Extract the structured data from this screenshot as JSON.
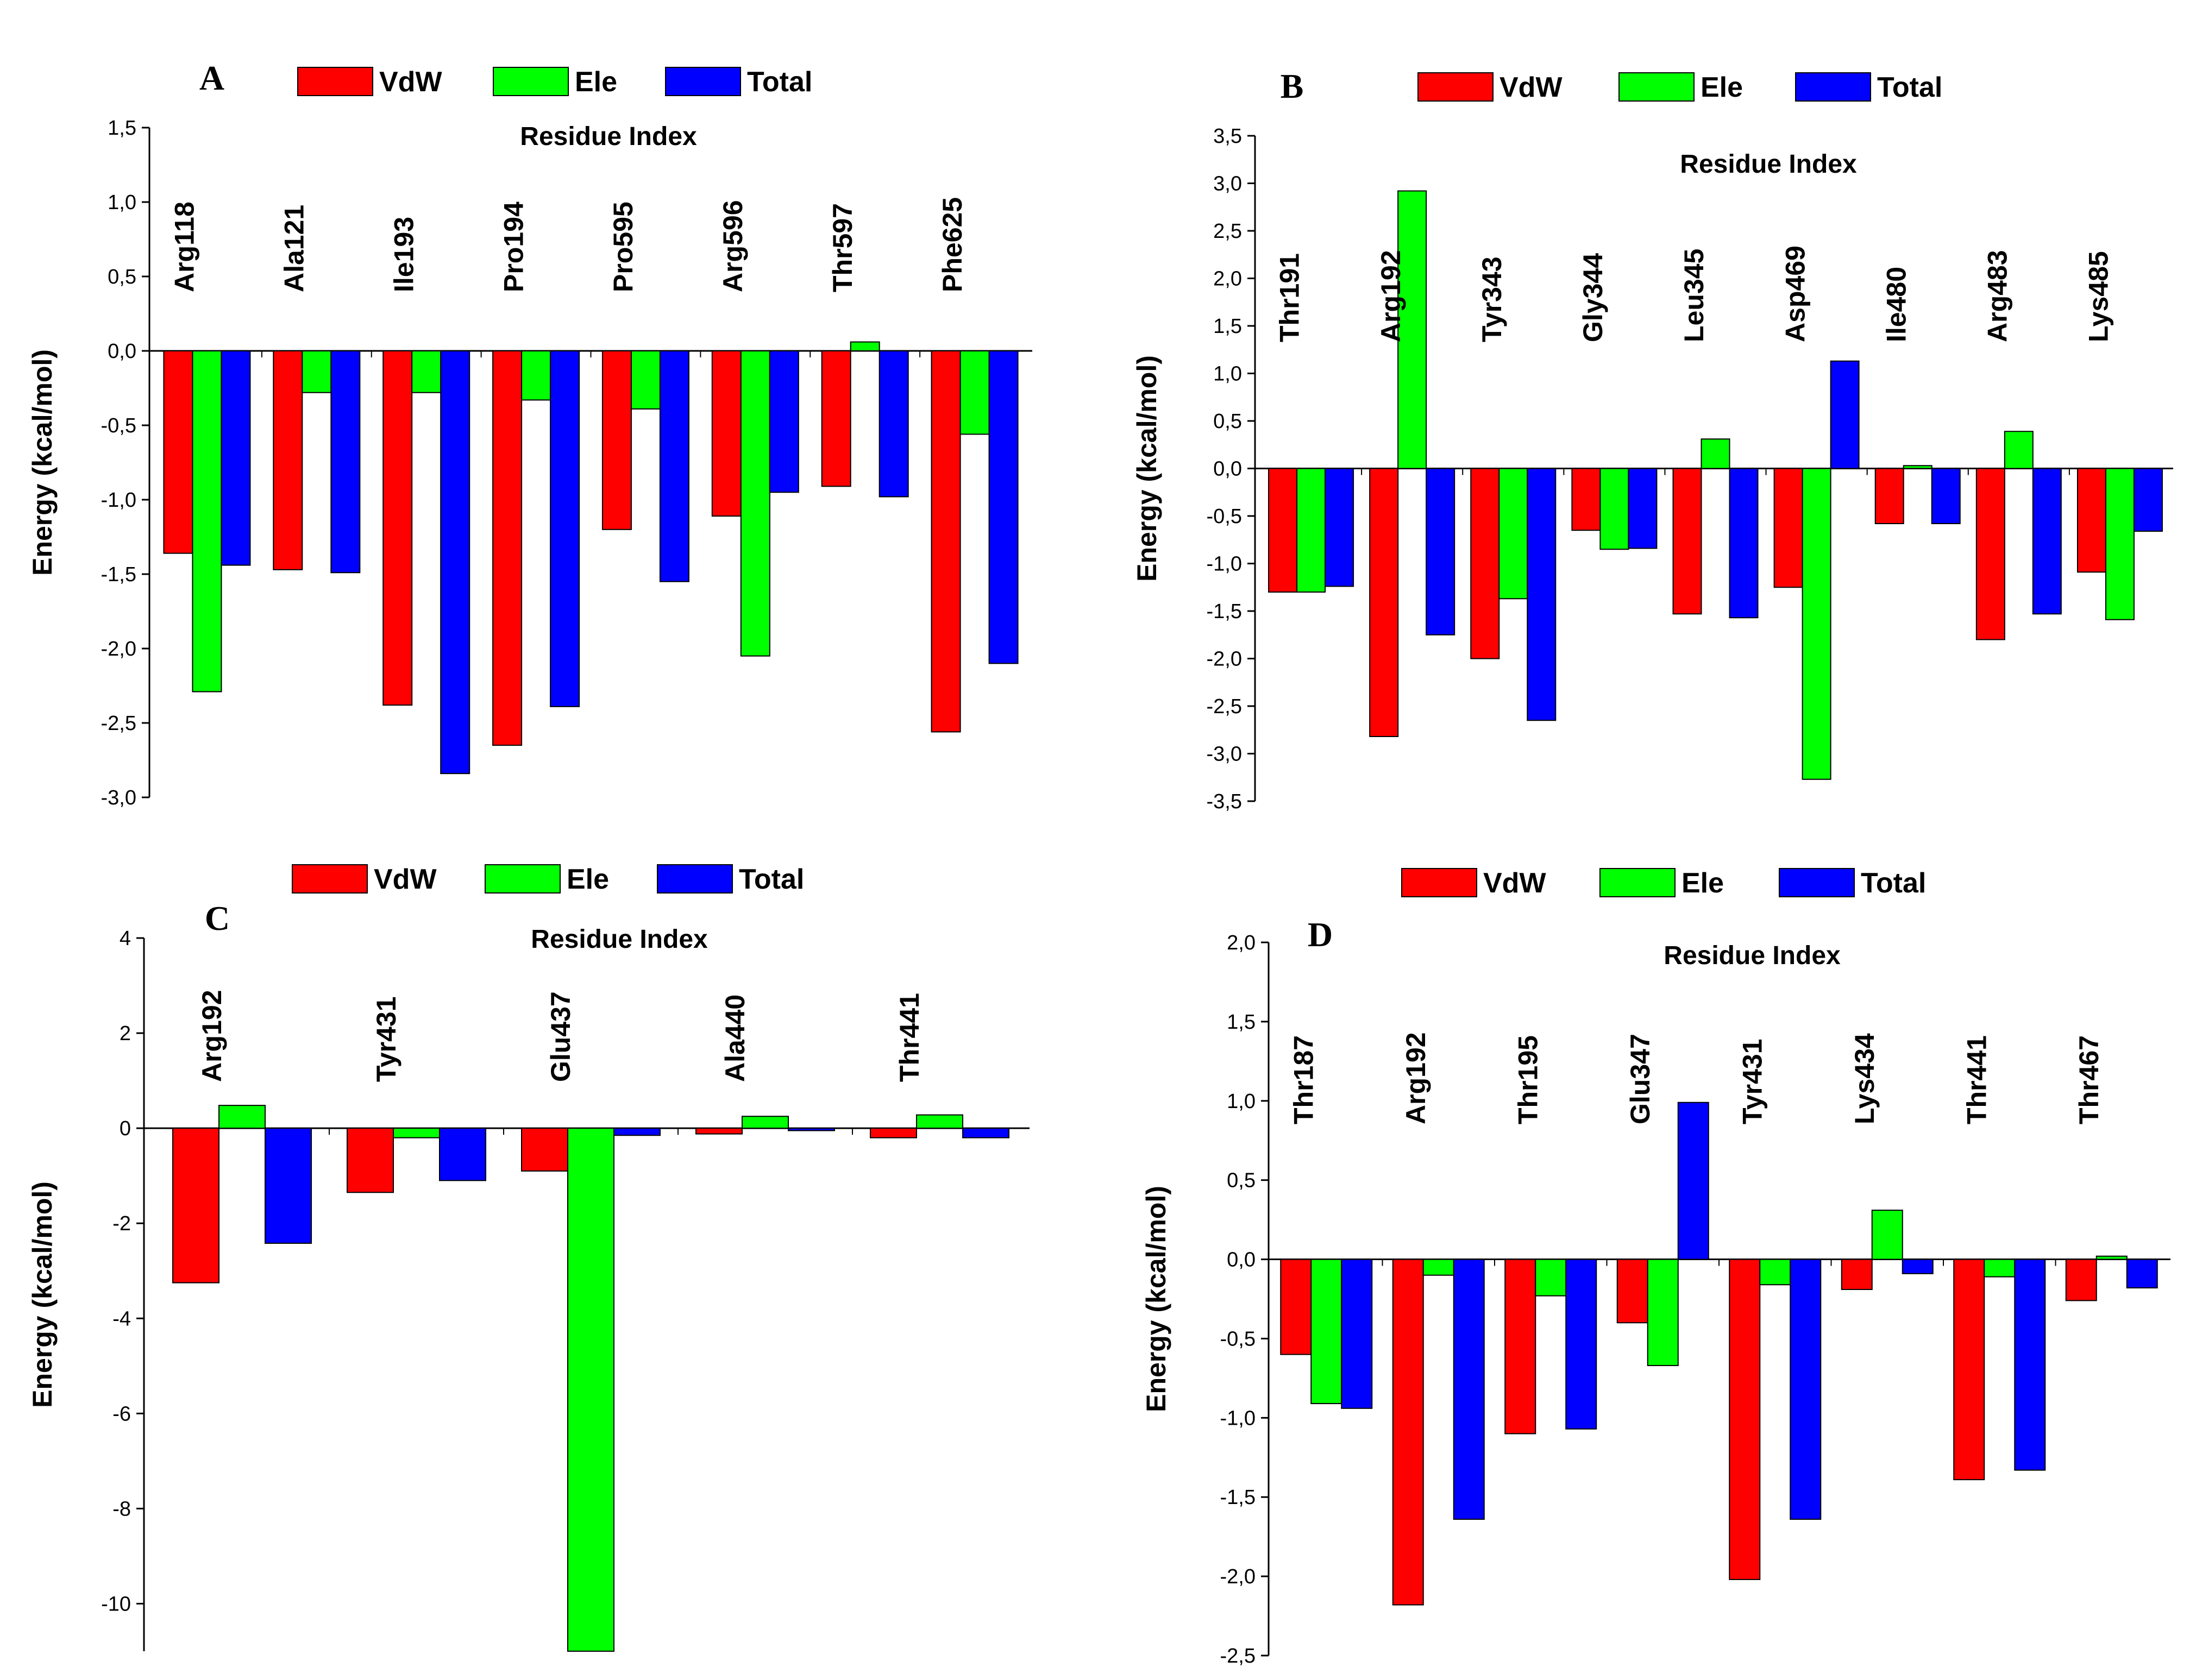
{
  "colors": {
    "VdW": "#ff0000",
    "Ele": "#00ff00",
    "Total": "#0000ff",
    "axis": "#000000"
  },
  "legend": [
    "VdW",
    "Ele",
    "Total"
  ],
  "chart_data": [
    {
      "panel": "A",
      "type": "bar",
      "title": "Residue Index",
      "ylabel": "Energy (kcal/mol)",
      "ylim": [
        -3.0,
        1.5
      ],
      "yticks": [
        "1,5",
        "1,0",
        "0,5",
        "0,0",
        "-0,5",
        "-1,0",
        "-1,5",
        "-2,0",
        "-2,5",
        "-3,0"
      ],
      "ytick_values": [
        1.5,
        1.0,
        0.5,
        0.0,
        -0.5,
        -1.0,
        -1.5,
        -2.0,
        -2.5,
        -3.0
      ],
      "categories": [
        "Arg118",
        "Ala121",
        "Ile193",
        "Pro194",
        "Pro595",
        "Arg596",
        "Thr597",
        "Phe625"
      ],
      "series": [
        {
          "name": "VdW",
          "values": [
            -1.36,
            -1.47,
            -2.38,
            -2.65,
            -1.2,
            -1.11,
            -0.91,
            -2.56
          ]
        },
        {
          "name": "Ele",
          "values": [
            -2.29,
            -0.28,
            -0.28,
            -0.33,
            -0.39,
            -2.05,
            0.06,
            -0.56
          ]
        },
        {
          "name": "Total",
          "values": [
            -1.44,
            -1.49,
            -2.84,
            -2.39,
            -1.55,
            -0.95,
            -0.98,
            -2.1
          ]
        }
      ]
    },
    {
      "panel": "B",
      "type": "bar",
      "title": "Residue Index",
      "ylabel": "Energy (kcal/mol)",
      "ylim": [
        -3.5,
        3.5
      ],
      "yticks": [
        "3,5",
        "3,0",
        "2,5",
        "2,0",
        "1,5",
        "1,0",
        "0,5",
        "0,0",
        "-0,5",
        "-1,0",
        "-1,5",
        "-2,0",
        "-2,5",
        "-3,0",
        "-3,5"
      ],
      "ytick_values": [
        3.5,
        3.0,
        2.5,
        2.0,
        1.5,
        1.0,
        0.5,
        0.0,
        -0.5,
        -1.0,
        -1.5,
        -2.0,
        -2.5,
        -3.0,
        -3.5
      ],
      "categories": [
        "Thr191",
        "Arg192",
        "Tyr343",
        "Gly344",
        "Leu345",
        "Asp469",
        "Ile480",
        "Arg483",
        "Lys485"
      ],
      "series": [
        {
          "name": "VdW",
          "values": [
            -1.3,
            -2.82,
            -2.0,
            -0.65,
            -1.53,
            -1.25,
            -0.58,
            -1.8,
            -1.09
          ]
        },
        {
          "name": "Ele",
          "values": [
            -1.3,
            2.92,
            -1.37,
            -0.85,
            0.31,
            -3.27,
            0.03,
            0.39,
            -1.59
          ]
        },
        {
          "name": "Total",
          "values": [
            -1.24,
            -1.75,
            -2.65,
            -0.84,
            -1.57,
            1.13,
            -0.58,
            -1.53,
            -0.66
          ]
        }
      ]
    },
    {
      "panel": "C",
      "type": "bar",
      "title": "Residue Index",
      "ylabel": "Energy (kcal/mol)",
      "ylim": [
        -11,
        4
      ],
      "yticks": [
        "4",
        "2",
        "0",
        "-2",
        "-4",
        "-6",
        "-8",
        "-10"
      ],
      "ytick_values": [
        4,
        2,
        0,
        -2,
        -4,
        -6,
        -8,
        -10
      ],
      "categories": [
        "Arg192",
        "Tyr431",
        "Glu437",
        "Ala440",
        "Thr441"
      ],
      "series": [
        {
          "name": "VdW",
          "values": [
            -3.25,
            -1.35,
            -0.9,
            -0.12,
            -0.2
          ]
        },
        {
          "name": "Ele",
          "values": [
            0.48,
            -0.2,
            -11.0,
            0.25,
            0.28
          ]
        },
        {
          "name": "Total",
          "values": [
            -2.42,
            -1.1,
            -0.15,
            -0.05,
            -0.2
          ]
        }
      ]
    },
    {
      "panel": "D",
      "type": "bar",
      "title": "Residue Index",
      "ylabel": "Energy (kcal/mol)",
      "ylim": [
        -2.5,
        2.0
      ],
      "yticks": [
        "2,0",
        "1,5",
        "1,0",
        "0,5",
        "0,0",
        "-0,5",
        "-1,0",
        "-1,5",
        "-2,0",
        "-2,5"
      ],
      "ytick_values": [
        2.0,
        1.5,
        1.0,
        0.5,
        0.0,
        -0.5,
        -1.0,
        -1.5,
        -2.0,
        -2.5
      ],
      "categories": [
        "Thr187",
        "Arg192",
        "Thr195",
        "Glu347",
        "Tyr431",
        "Lys434",
        "Thr441",
        "Thr467"
      ],
      "series": [
        {
          "name": "VdW",
          "values": [
            -0.6,
            -2.18,
            -1.1,
            -0.4,
            -2.02,
            -0.19,
            -1.39,
            -0.26
          ]
        },
        {
          "name": "Ele",
          "values": [
            -0.91,
            -0.1,
            -0.23,
            -0.67,
            -0.16,
            0.31,
            -0.11,
            0.02
          ]
        },
        {
          "name": "Total",
          "values": [
            -0.94,
            -1.64,
            -1.07,
            0.99,
            -1.64,
            -0.09,
            -1.33,
            -0.18
          ]
        }
      ]
    }
  ]
}
